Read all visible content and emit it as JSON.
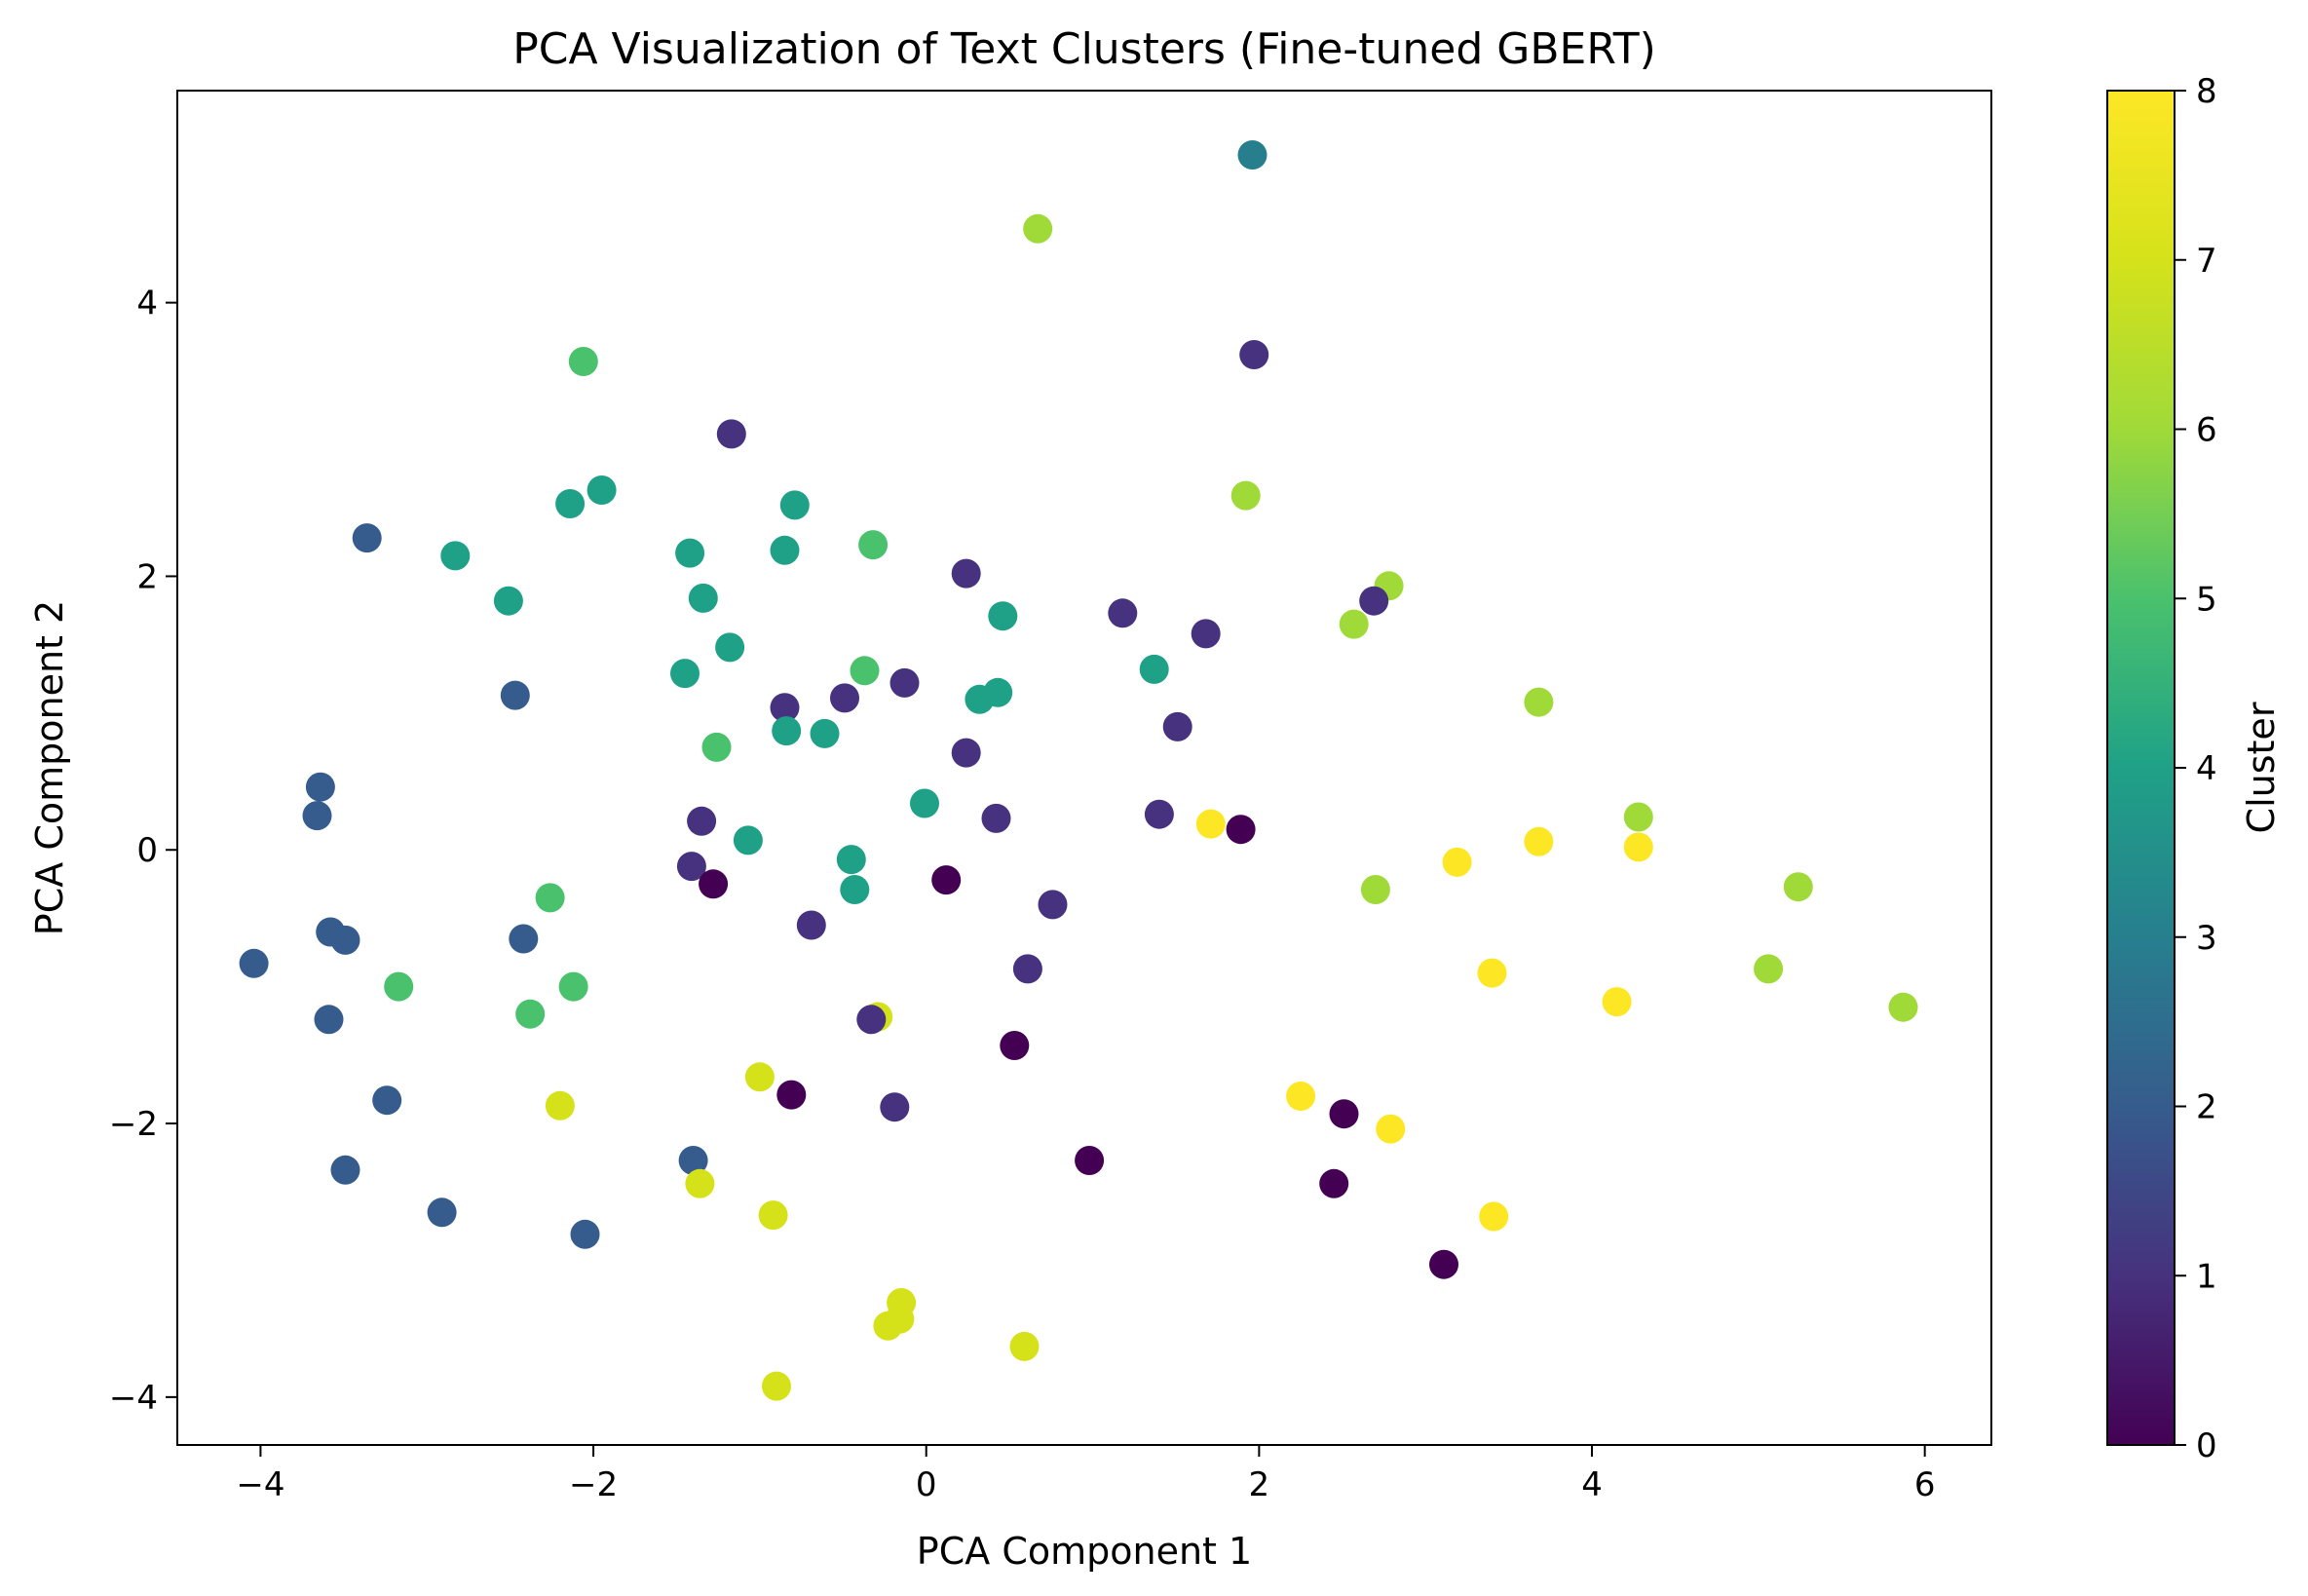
{
  "chart_data": {
    "type": "scatter",
    "title": "PCA Visualization of Text Clusters (Fine-tuned GBERT)",
    "xlabel": "PCA Component 1",
    "ylabel": "PCA Component 2",
    "xlim": [
      -4.5,
      6.4
    ],
    "ylim": [
      -4.35,
      5.55
    ],
    "xticks": [
      -4,
      -2,
      0,
      2,
      4,
      6
    ],
    "yticks": [
      -4,
      -2,
      0,
      2,
      4
    ],
    "xtick_labels": [
      "−4",
      "−2",
      "0",
      "2",
      "4",
      "6"
    ],
    "ytick_labels": [
      "−4",
      "−2",
      "0",
      "2",
      "4"
    ],
    "grid": false,
    "colormap": "viridis",
    "colorbar": {
      "label": "Cluster",
      "min": 0,
      "max": 8,
      "ticks": [
        0,
        1,
        2,
        3,
        4,
        5,
        6,
        7,
        8
      ],
      "tick_labels": [
        "0",
        "1",
        "2",
        "3",
        "4",
        "5",
        "6",
        "7",
        "8"
      ]
    },
    "points": [
      {
        "x": 1.96,
        "y": 5.08,
        "cluster": 3
      },
      {
        "x": 0.67,
        "y": 4.54,
        "cluster": 6
      },
      {
        "x": 1.97,
        "y": 3.62,
        "cluster": 1
      },
      {
        "x": -2.06,
        "y": 3.57,
        "cluster": 5
      },
      {
        "x": -1.17,
        "y": 3.04,
        "cluster": 1
      },
      {
        "x": -1.95,
        "y": 2.63,
        "cluster": 4
      },
      {
        "x": -2.14,
        "y": 2.53,
        "cluster": 4
      },
      {
        "x": -0.79,
        "y": 2.52,
        "cluster": 4
      },
      {
        "x": 1.92,
        "y": 2.59,
        "cluster": 6
      },
      {
        "x": -3.36,
        "y": 2.28,
        "cluster": 2
      },
      {
        "x": -2.83,
        "y": 2.15,
        "cluster": 4
      },
      {
        "x": -1.42,
        "y": 2.17,
        "cluster": 4
      },
      {
        "x": -0.85,
        "y": 2.19,
        "cluster": 4
      },
      {
        "x": -0.32,
        "y": 2.23,
        "cluster": 5
      },
      {
        "x": 0.24,
        "y": 2.02,
        "cluster": 1
      },
      {
        "x": -2.51,
        "y": 1.82,
        "cluster": 4
      },
      {
        "x": -1.34,
        "y": 1.84,
        "cluster": 4
      },
      {
        "x": 0.46,
        "y": 1.71,
        "cluster": 4
      },
      {
        "x": 1.18,
        "y": 1.73,
        "cluster": 1
      },
      {
        "x": 2.78,
        "y": 1.93,
        "cluster": 6
      },
      {
        "x": 2.69,
        "y": 1.82,
        "cluster": 1
      },
      {
        "x": 2.57,
        "y": 1.65,
        "cluster": 6
      },
      {
        "x": 1.68,
        "y": 1.58,
        "cluster": 1
      },
      {
        "x": -1.18,
        "y": 1.48,
        "cluster": 4
      },
      {
        "x": 1.37,
        "y": 1.32,
        "cluster": 4
      },
      {
        "x": -1.45,
        "y": 1.29,
        "cluster": 4
      },
      {
        "x": -0.37,
        "y": 1.31,
        "cluster": 5
      },
      {
        "x": -0.13,
        "y": 1.22,
        "cluster": 1
      },
      {
        "x": -2.47,
        "y": 1.13,
        "cluster": 2
      },
      {
        "x": -0.49,
        "y": 1.11,
        "cluster": 1
      },
      {
        "x": 0.32,
        "y": 1.1,
        "cluster": 4
      },
      {
        "x": 0.43,
        "y": 1.15,
        "cluster": 4
      },
      {
        "x": -0.85,
        "y": 1.04,
        "cluster": 1
      },
      {
        "x": 3.68,
        "y": 1.08,
        "cluster": 6
      },
      {
        "x": 1.51,
        "y": 0.9,
        "cluster": 1
      },
      {
        "x": -0.84,
        "y": 0.87,
        "cluster": 4
      },
      {
        "x": -0.61,
        "y": 0.85,
        "cluster": 4
      },
      {
        "x": -1.26,
        "y": 0.75,
        "cluster": 5
      },
      {
        "x": 0.24,
        "y": 0.71,
        "cluster": 1
      },
      {
        "x": -3.64,
        "y": 0.46,
        "cluster": 2
      },
      {
        "x": -0.01,
        "y": 0.34,
        "cluster": 4
      },
      {
        "x": -3.66,
        "y": 0.25,
        "cluster": 2
      },
      {
        "x": -1.35,
        "y": 0.21,
        "cluster": 1
      },
      {
        "x": 0.42,
        "y": 0.23,
        "cluster": 1
      },
      {
        "x": 1.4,
        "y": 0.26,
        "cluster": 1
      },
      {
        "x": 4.28,
        "y": 0.24,
        "cluster": 6
      },
      {
        "x": 1.71,
        "y": 0.19,
        "cluster": 8
      },
      {
        "x": 1.89,
        "y": 0.15,
        "cluster": 0
      },
      {
        "x": -1.07,
        "y": 0.07,
        "cluster": 4
      },
      {
        "x": 3.68,
        "y": 0.06,
        "cluster": 8
      },
      {
        "x": 4.28,
        "y": 0.02,
        "cluster": 8
      },
      {
        "x": -0.45,
        "y": -0.07,
        "cluster": 4
      },
      {
        "x": 3.19,
        "y": -0.09,
        "cluster": 8
      },
      {
        "x": -1.41,
        "y": -0.12,
        "cluster": 1
      },
      {
        "x": 0.12,
        "y": -0.22,
        "cluster": 0
      },
      {
        "x": -1.28,
        "y": -0.25,
        "cluster": 0
      },
      {
        "x": 5.24,
        "y": -0.27,
        "cluster": 6
      },
      {
        "x": -0.43,
        "y": -0.29,
        "cluster": 4
      },
      {
        "x": 2.7,
        "y": -0.29,
        "cluster": 6
      },
      {
        "x": -2.26,
        "y": -0.35,
        "cluster": 5
      },
      {
        "x": 0.76,
        "y": -0.4,
        "cluster": 1
      },
      {
        "x": -0.69,
        "y": -0.55,
        "cluster": 1
      },
      {
        "x": -3.58,
        "y": -0.6,
        "cluster": 2
      },
      {
        "x": -3.49,
        "y": -0.66,
        "cluster": 2
      },
      {
        "x": -2.42,
        "y": -0.65,
        "cluster": 2
      },
      {
        "x": -4.04,
        "y": -0.83,
        "cluster": 2
      },
      {
        "x": 0.61,
        "y": -0.87,
        "cluster": 1
      },
      {
        "x": 5.06,
        "y": -0.87,
        "cluster": 6
      },
      {
        "x": 3.4,
        "y": -0.9,
        "cluster": 8
      },
      {
        "x": -3.17,
        "y": -1.0,
        "cluster": 5
      },
      {
        "x": -2.12,
        "y": -1.0,
        "cluster": 5
      },
      {
        "x": 4.15,
        "y": -1.11,
        "cluster": 8
      },
      {
        "x": 5.87,
        "y": -1.15,
        "cluster": 6
      },
      {
        "x": -2.38,
        "y": -1.2,
        "cluster": 5
      },
      {
        "x": -0.29,
        "y": -1.22,
        "cluster": 7
      },
      {
        "x": -3.59,
        "y": -1.24,
        "cluster": 2
      },
      {
        "x": -0.33,
        "y": -1.24,
        "cluster": 1
      },
      {
        "x": 0.53,
        "y": -1.43,
        "cluster": 0
      },
      {
        "x": -1.0,
        "y": -1.66,
        "cluster": 7
      },
      {
        "x": 2.25,
        "y": -1.8,
        "cluster": 8
      },
      {
        "x": -0.81,
        "y": -1.79,
        "cluster": 0
      },
      {
        "x": -3.24,
        "y": -1.83,
        "cluster": 2
      },
      {
        "x": -2.2,
        "y": -1.87,
        "cluster": 7
      },
      {
        "x": -0.19,
        "y": -1.88,
        "cluster": 1
      },
      {
        "x": 2.51,
        "y": -1.93,
        "cluster": 0
      },
      {
        "x": 2.79,
        "y": -2.04,
        "cluster": 8
      },
      {
        "x": 0.98,
        "y": -2.27,
        "cluster": 0
      },
      {
        "x": -1.4,
        "y": -2.27,
        "cluster": 2
      },
      {
        "x": -3.49,
        "y": -2.34,
        "cluster": 2
      },
      {
        "x": -1.36,
        "y": -2.44,
        "cluster": 7
      },
      {
        "x": 2.45,
        "y": -2.44,
        "cluster": 0
      },
      {
        "x": -2.91,
        "y": -2.65,
        "cluster": 2
      },
      {
        "x": -0.92,
        "y": -2.67,
        "cluster": 7
      },
      {
        "x": 3.41,
        "y": -2.68,
        "cluster": 8
      },
      {
        "x": -2.05,
        "y": -2.81,
        "cluster": 2
      },
      {
        "x": 3.11,
        "y": -3.03,
        "cluster": 0
      },
      {
        "x": -0.15,
        "y": -3.31,
        "cluster": 7
      },
      {
        "x": -0.16,
        "y": -3.43,
        "cluster": 7
      },
      {
        "x": -0.23,
        "y": -3.48,
        "cluster": 7
      },
      {
        "x": 0.59,
        "y": -3.63,
        "cluster": 7
      },
      {
        "x": -0.9,
        "y": -3.92,
        "cluster": 7
      }
    ]
  }
}
